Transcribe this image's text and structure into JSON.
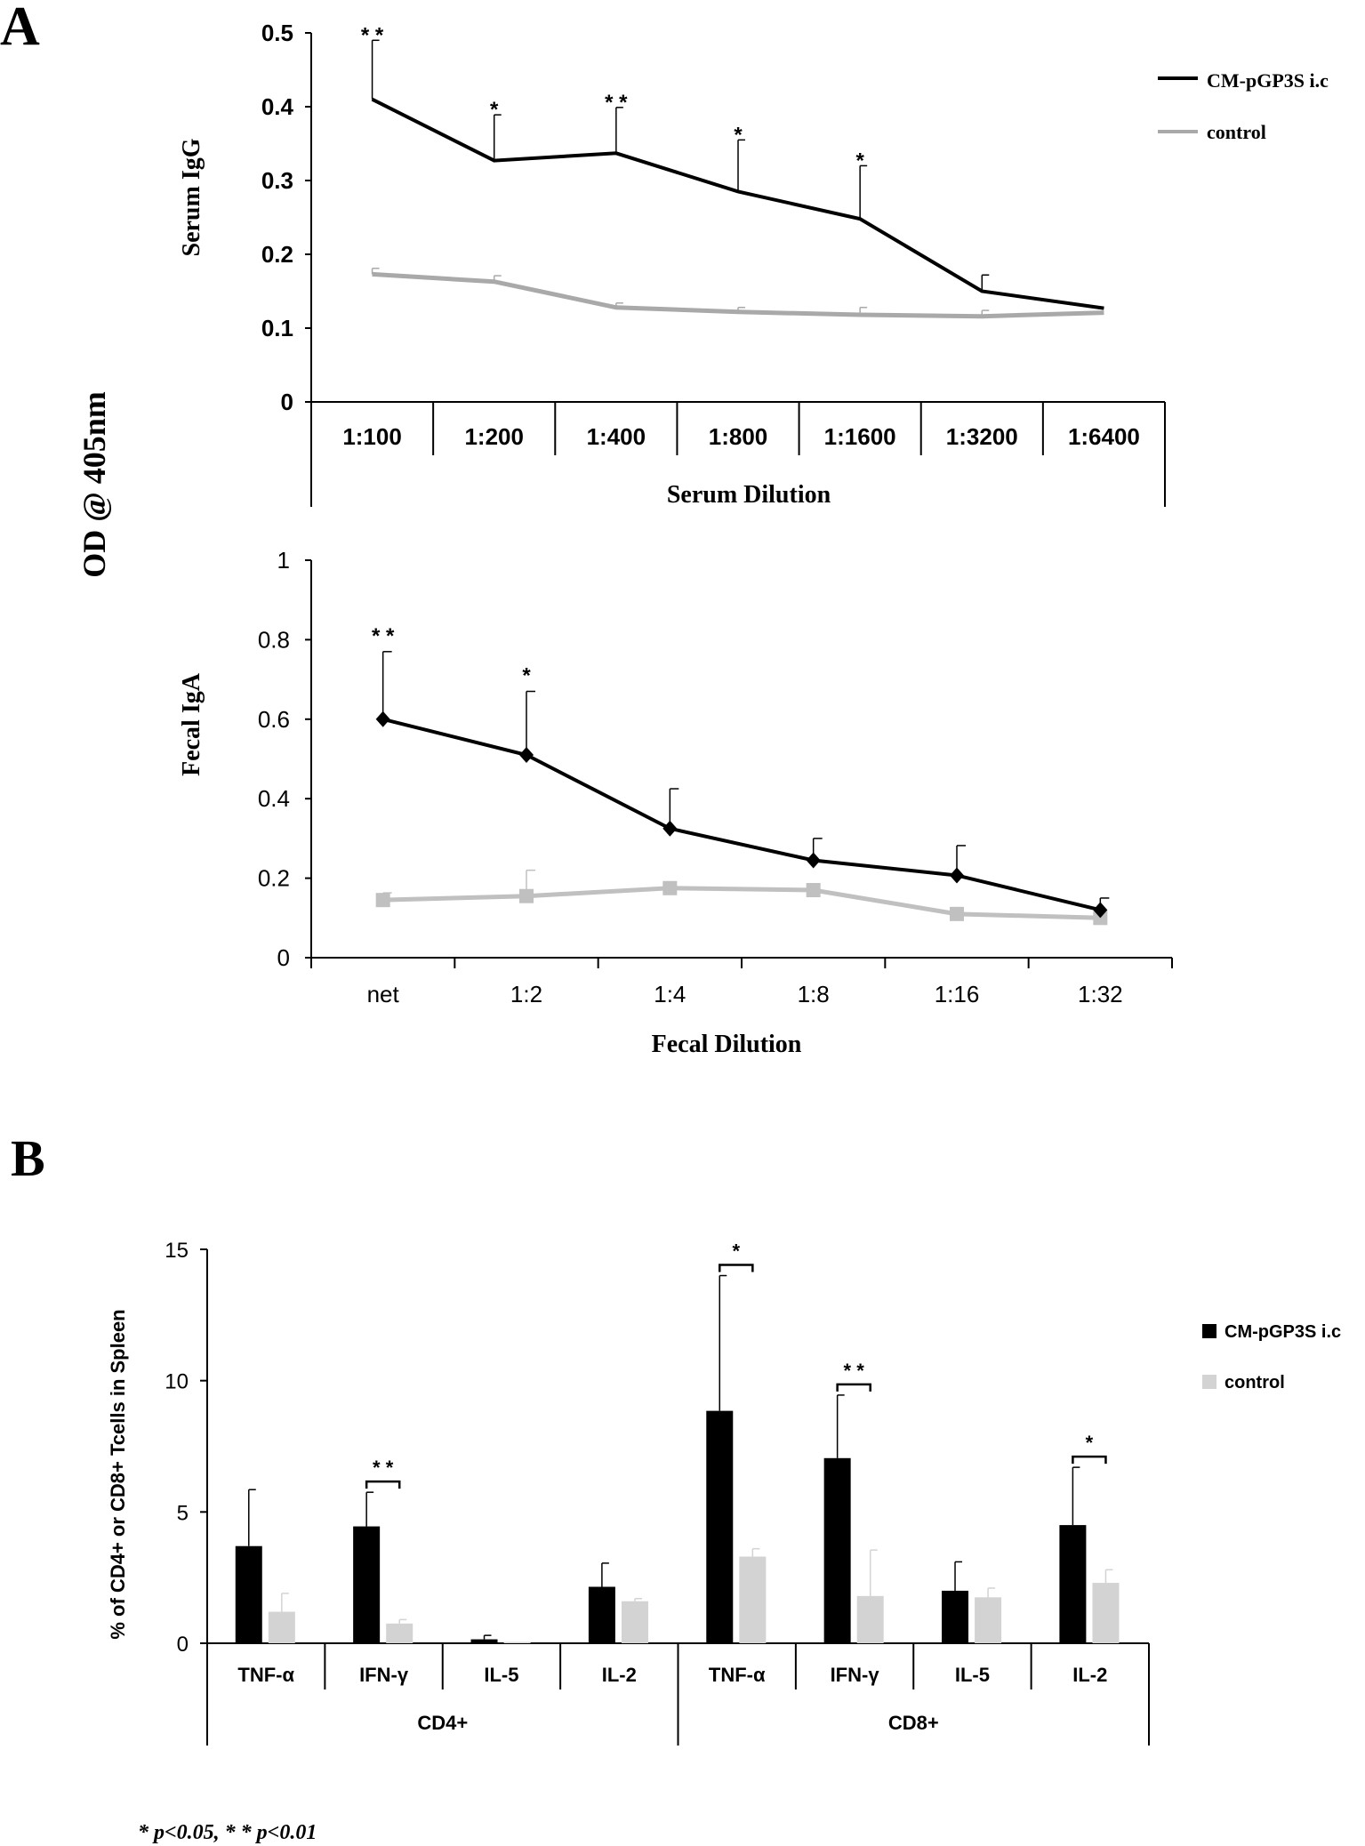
{
  "figure": {
    "panel_a_label": "A",
    "panel_b_label": "B",
    "shared_ylabel": "OD @ 405nm",
    "footnote": "* p<0.05,  * * p<0.01"
  },
  "colors": {
    "treated": "#000000",
    "control_line": "#a9a9a9",
    "control_bar": "#d3d3d3"
  },
  "chart_data": [
    {
      "id": "serum",
      "type": "line",
      "ylabel": "Serum IgG",
      "xlabel": "Serum Dilution",
      "ylim": [
        0,
        0.5
      ],
      "yticks": [
        "0",
        "0.1",
        "0.2",
        "0.3",
        "0.4",
        "0.5"
      ],
      "categories": [
        "1:100",
        "1:200",
        "1:400",
        "1:800",
        "1:1600",
        "1:3200",
        "1:6400"
      ],
      "legend": [
        "CM-pGP3S i.c",
        "control"
      ],
      "series": [
        {
          "name": "CM-pGP3S i.c",
          "values": [
            0.41,
            0.327,
            0.337,
            0.285,
            0.248,
            0.15,
            0.127
          ],
          "errors": [
            0.08,
            0.062,
            0.062,
            0.07,
            0.072,
            0.022,
            0.0
          ]
        },
        {
          "name": "control",
          "values": [
            0.173,
            0.163,
            0.128,
            0.122,
            0.118,
            0.116,
            0.121
          ],
          "errors": [
            0.008,
            0.008,
            0.006,
            0.006,
            0.01,
            0.008,
            0.0
          ]
        }
      ],
      "annotations": [
        "* *",
        "*",
        "* *",
        "*",
        "*",
        "",
        ""
      ]
    },
    {
      "id": "fecal",
      "type": "line",
      "ylabel": "Fecal IgA",
      "xlabel": "Fecal Dilution",
      "ylim": [
        0,
        1
      ],
      "yticks": [
        "0",
        "0.2",
        "0.4",
        "0.6",
        "0.8",
        "1"
      ],
      "categories": [
        "net",
        "1:2",
        "1:4",
        "1:8",
        "1:16",
        "1:32"
      ],
      "series": [
        {
          "name": "CM-pGP3S i.c",
          "marker": "diamond",
          "values": [
            0.6,
            0.51,
            0.325,
            0.245,
            0.207,
            0.12
          ],
          "errors": [
            0.17,
            0.16,
            0.1,
            0.055,
            0.075,
            0.03
          ]
        },
        {
          "name": "control",
          "marker": "square",
          "values": [
            0.145,
            0.155,
            0.175,
            0.17,
            0.11,
            0.1
          ],
          "errors": [
            0.018,
            0.065,
            0.0,
            0.0,
            0.0,
            0.0
          ]
        }
      ],
      "annotations": [
        "* *",
        "*",
        "",
        "",
        "",
        ""
      ]
    },
    {
      "id": "tcells",
      "type": "bar",
      "ylabel": "% of CD4+ or CD8+ Tcells in Spleen",
      "ylim": [
        0,
        15
      ],
      "yticks": [
        "0",
        "5",
        "10",
        "15"
      ],
      "categories": [
        "TNF-α",
        "IFN-γ",
        "IL-5",
        "IL-2",
        "TNF-α",
        "IFN-γ",
        "IL-5",
        "IL-2"
      ],
      "groups": [
        {
          "label": "CD4+",
          "span": [
            0,
            3
          ]
        },
        {
          "label": "CD8+",
          "span": [
            4,
            7
          ]
        }
      ],
      "legend": [
        "CM-pGP3S i.c",
        "control"
      ],
      "series": [
        {
          "name": "CM-pGP3S i.c",
          "values": [
            3.7,
            4.45,
            0.15,
            2.15,
            8.85,
            7.05,
            2.0,
            4.5
          ],
          "errors": [
            2.15,
            1.3,
            0.15,
            0.9,
            5.15,
            2.4,
            1.1,
            2.2
          ]
        },
        {
          "name": "control",
          "values": [
            1.2,
            0.75,
            0.05,
            1.6,
            3.3,
            1.8,
            1.75,
            2.3
          ],
          "errors": [
            0.7,
            0.15,
            0.0,
            0.1,
            0.3,
            1.75,
            0.35,
            0.5
          ]
        }
      ],
      "annotations": [
        "",
        "* *",
        "",
        "",
        "*",
        "* *",
        "",
        "*"
      ]
    }
  ]
}
